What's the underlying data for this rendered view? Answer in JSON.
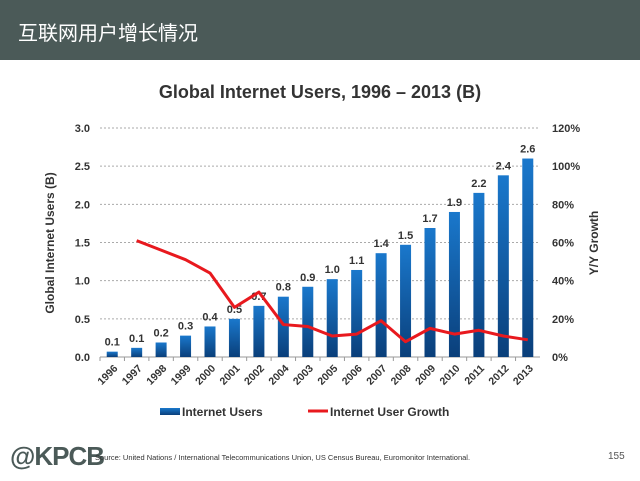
{
  "header": {
    "title": "互联网用户增长情况"
  },
  "chart_data": {
    "type": "bar+line",
    "title": "Global Internet Users, 1996 – 2013 (B)",
    "ylabel": "Global Internet Users (B)",
    "y2label": "Y/Y Growth",
    "ylim": [
      0,
      3.0
    ],
    "y2lim": [
      0,
      120
    ],
    "yticks": [
      "0.0",
      "0.5",
      "1.0",
      "1.5",
      "2.0",
      "2.5",
      "3.0"
    ],
    "y2ticks": [
      "0%",
      "20%",
      "40%",
      "60%",
      "80%",
      "100%",
      "120%"
    ],
    "grid": true,
    "legend": "bottom",
    "categories": [
      "1996",
      "1997",
      "1998",
      "1999",
      "2000",
      "2001",
      "2002",
      "2004",
      "2003",
      "2005",
      "2006",
      "2007",
      "2008",
      "2009",
      "2010",
      "2011",
      "2012",
      "2013"
    ],
    "series": [
      {
        "name": "Internet Users",
        "type": "bar",
        "color": "#0b5fb0",
        "values": [
          0.07,
          0.12,
          0.19,
          0.28,
          0.4,
          0.5,
          0.67,
          0.79,
          0.92,
          1.02,
          1.14,
          1.36,
          1.47,
          1.69,
          1.9,
          2.15,
          2.38,
          2.6
        ],
        "labels": [
          "0.1",
          "0.1",
          "0.2",
          "0.3",
          "0.4",
          "0.5",
          "0.7",
          "0.8",
          "0.9",
          "1.0",
          "1.1",
          "1.4",
          "1.5",
          "1.7",
          "1.9",
          "2.2",
          "2.4",
          "2.6"
        ]
      },
      {
        "name": "Internet User Growth",
        "type": "line",
        "axis": "right",
        "color": "#e8191e",
        "values": [
          null,
          61,
          56,
          51,
          44,
          26,
          34,
          17,
          16,
          11,
          12,
          19,
          8,
          15,
          12,
          14,
          11,
          9
        ]
      }
    ]
  },
  "footer": {
    "logo": "@KPCB",
    "source": "Source: United Nations / International Telecommunications Union, US Census Bureau, Euromonitor International.",
    "page": "155"
  }
}
